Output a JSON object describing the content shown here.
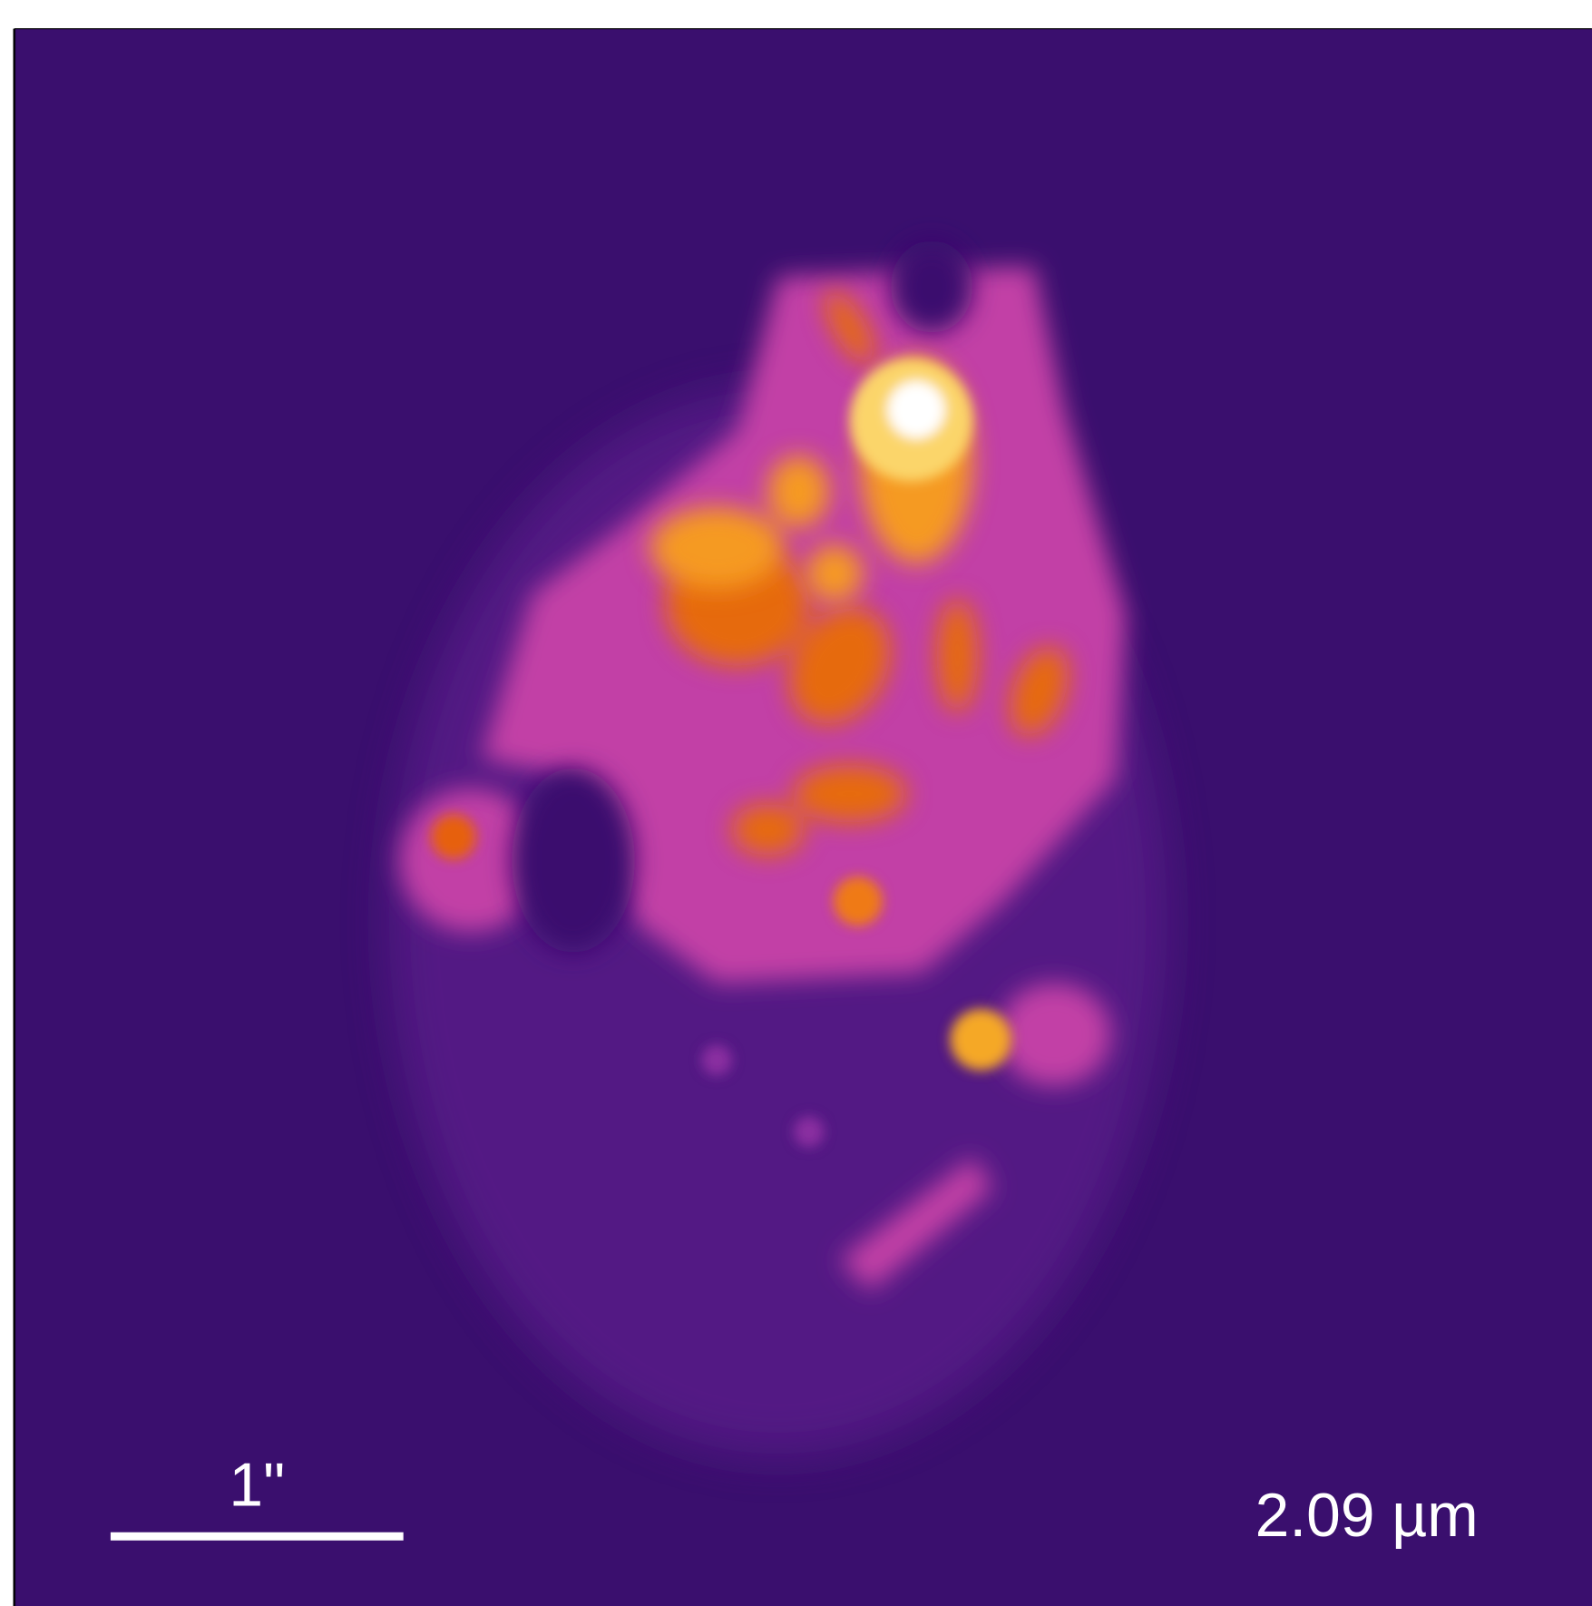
{
  "labels": {
    "scale_bar": "1\"",
    "wavelength": "2.09 µm"
  }
}
